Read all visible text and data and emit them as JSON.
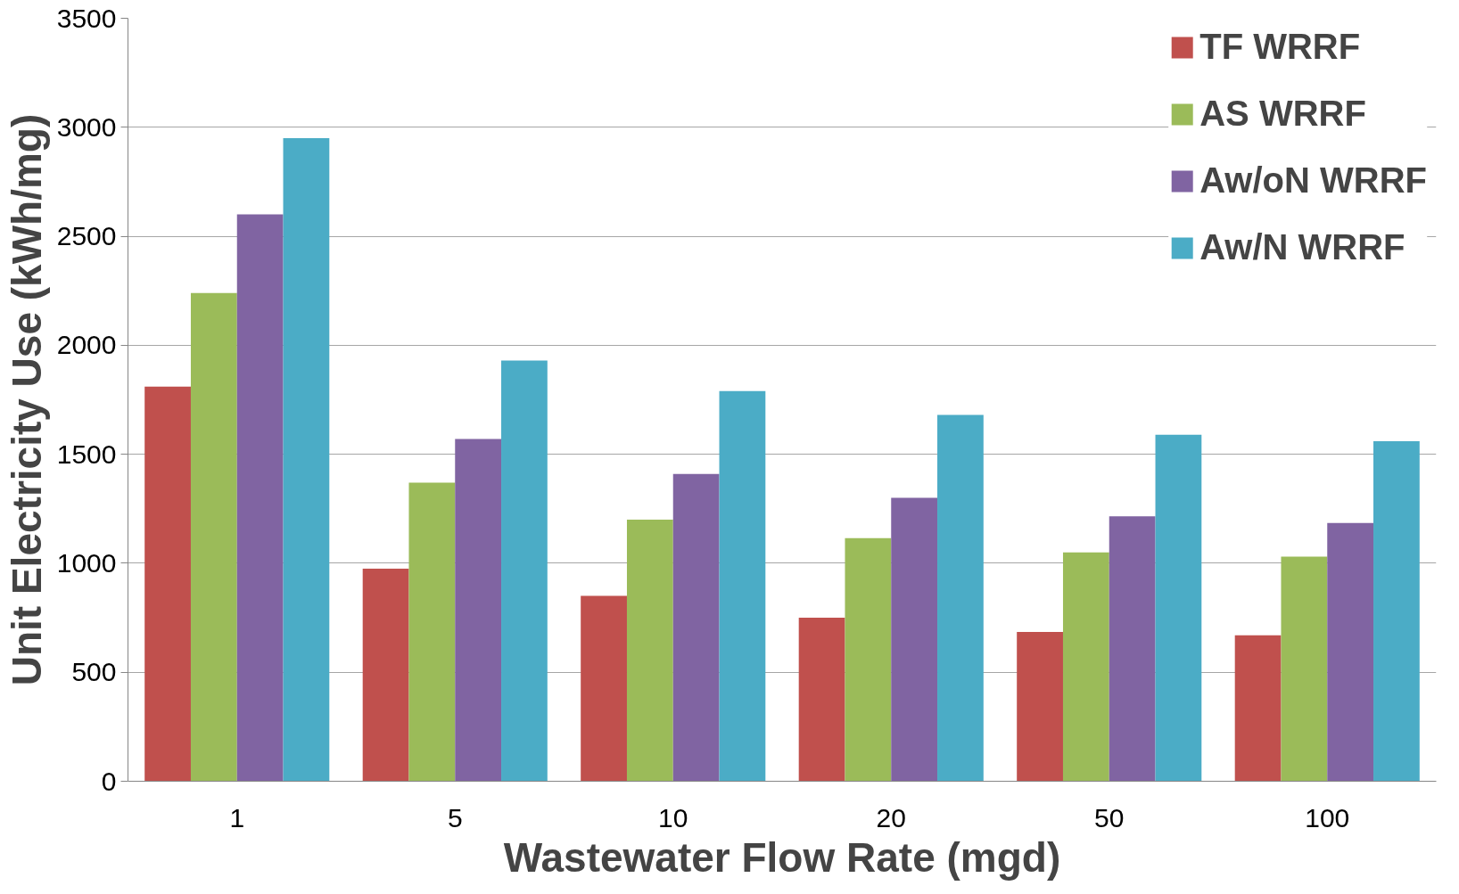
{
  "chart_data": {
    "type": "bar",
    "xlabel": "Wastewater Flow Rate (mgd)",
    "ylabel": "Unit Electricity Use (kWh/mg)",
    "categories": [
      "1",
      "5",
      "10",
      "20",
      "50",
      "100"
    ],
    "series": [
      {
        "name": "TF WRRF",
        "color": "#c0504d",
        "values": [
          1810,
          975,
          850,
          750,
          685,
          670
        ]
      },
      {
        "name": "AS WRRF",
        "color": "#9bbb59",
        "values": [
          2240,
          1370,
          1200,
          1115,
          1050,
          1030
        ]
      },
      {
        "name": "Aw/oN WRRF",
        "color": "#8064a2",
        "values": [
          2600,
          1570,
          1410,
          1300,
          1215,
          1185
        ]
      },
      {
        "name": "Aw/N WRRF",
        "color": "#4bacc6",
        "values": [
          2950,
          1930,
          1790,
          1680,
          1590,
          1560
        ]
      }
    ],
    "ylim": [
      0,
      3500
    ],
    "yticks": [
      0,
      500,
      1000,
      1500,
      2000,
      2500,
      3000,
      3500
    ],
    "grid": "y",
    "legend": "top right"
  }
}
